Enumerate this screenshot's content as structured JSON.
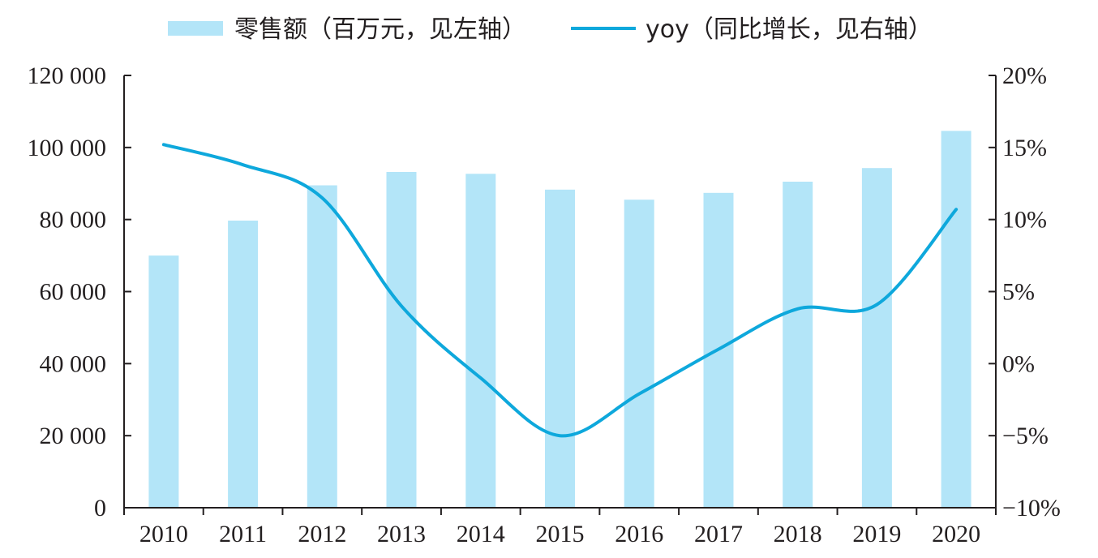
{
  "chart_data": {
    "type": "bar",
    "categories": [
      "2010",
      "2011",
      "2012",
      "2013",
      "2014",
      "2015",
      "2016",
      "2017",
      "2018",
      "2019",
      "2020"
    ],
    "series": [
      {
        "name": "零售额（百万元，见左轴）",
        "type": "bar",
        "axis": "left",
        "color": "#b3e5f8",
        "values": [
          70000,
          79700,
          89500,
          93200,
          92700,
          88300,
          85500,
          87400,
          90500,
          94300,
          104600
        ]
      },
      {
        "name": "yoy（同比增长，见右轴）",
        "type": "line",
        "axis": "right",
        "color": "#0ea8dc",
        "values": [
          15.2,
          13.8,
          11.5,
          4.0,
          -1.0,
          -5.0,
          -2.1,
          1.0,
          3.8,
          4.1,
          10.7
        ]
      }
    ],
    "left_axis": {
      "ylim": [
        0,
        120000
      ],
      "ticks": [
        0,
        20000,
        40000,
        60000,
        80000,
        100000,
        120000
      ],
      "tick_labels": [
        "0",
        "20 000",
        "40 000",
        "60 000",
        "80 000",
        "100 000",
        "120 000"
      ]
    },
    "right_axis": {
      "ylim": [
        -10,
        20
      ],
      "ticks": [
        -10,
        -5,
        0,
        5,
        10,
        15,
        20
      ],
      "tick_labels": [
        "−10%",
        "−5%",
        "0%",
        "5%",
        "10%",
        "15%",
        "20%"
      ]
    },
    "legend_position": "top",
    "grid": false
  }
}
